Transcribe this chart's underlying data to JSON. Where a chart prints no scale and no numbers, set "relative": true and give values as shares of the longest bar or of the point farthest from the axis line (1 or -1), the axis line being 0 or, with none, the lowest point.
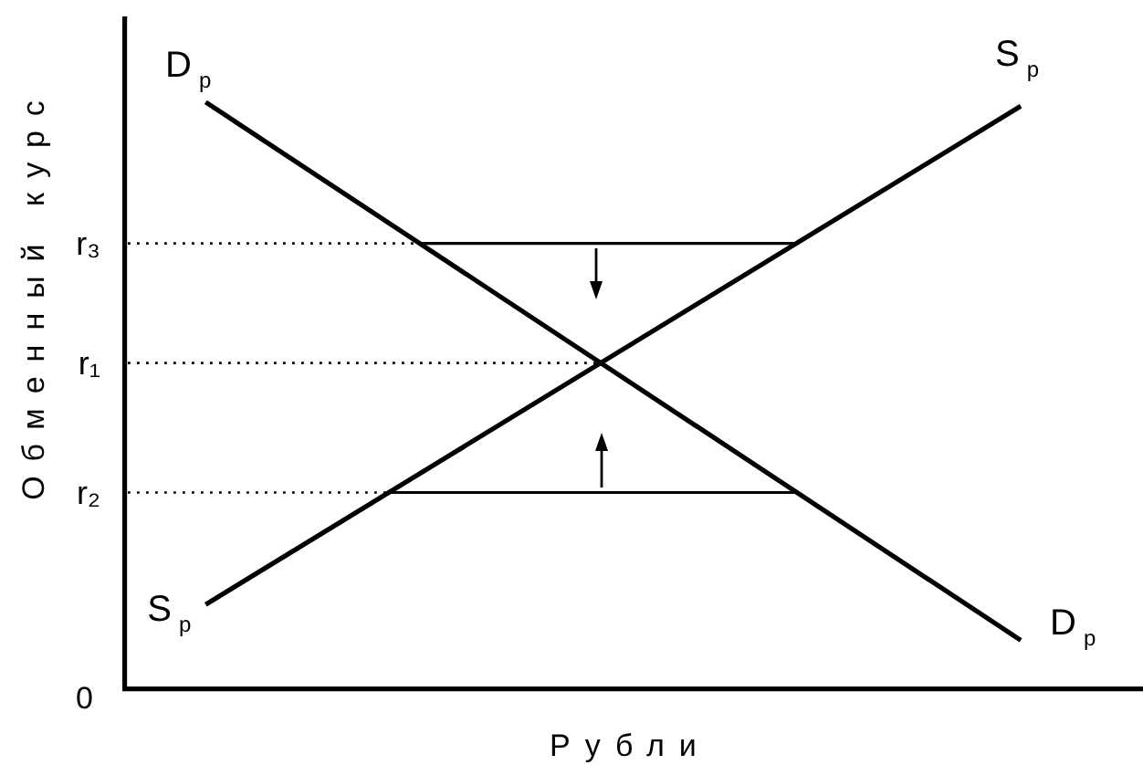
{
  "chart_data": {
    "type": "line",
    "relative": true,
    "xlabel": "Рубли",
    "ylabel": "Обменный курс",
    "categories": [
      null,
      null,
      null,
      null,
      null,
      null,
      null,
      null,
      null,
      null,
      null,
      null,
      null,
      null,
      null,
      null,
      null,
      null,
      null,
      null,
      null,
      null,
      null,
      null,
      null,
      null,
      null,
      null,
      null,
      null,
      null,
      null,
      null,
      null,
      null,
      null,
      null,
      null,
      null,
      null,
      null,
      null,
      null,
      null,
      null,
      null,
      null,
      null,
      null,
      null,
      null,
      null,
      null,
      null,
      null,
      null,
      null,
      null,
      null,
      null,
      null,
      null,
      null,
      null,
      null,
      null,
      null,
      null,
      null,
      null,
      null,
      null,
      null,
      null,
      null,
      null,
      null,
      null,
      null,
      null,
      null,
      null,
      null,
      null,
      null,
      null,
      null,
      null,
      null,
      null,
      null,
      null,
      null,
      null,
      null,
      null,
      null,
      null,
      null,
      null,
      null
    ],
    "series": [
      {
        "name": "D$_{р}$",
        "color": "#000000",
        "values": [
          null,
          null,
          null,
          null,
          null,
          null,
          null,
          null,
          1,
          null,
          null,
          null,
          null,
          null,
          null,
          null,
          null,
          null,
          null,
          null,
          null,
          null,
          null,
          null,
          null,
          null,
          null,
          null,
          null,
          null,
          null,
          null,
          null,
          null,
          null,
          null,
          null,
          null,
          null,
          null,
          null,
          null,
          null,
          null,
          null,
          null,
          null,
          null,
          null,
          null,
          null,
          null,
          null,
          null,
          null,
          null,
          null,
          null,
          null,
          null,
          null,
          null,
          null,
          null,
          null,
          null,
          null,
          null,
          null,
          null,
          null,
          null,
          null,
          null,
          null,
          null,
          null,
          null,
          null,
          null,
          null,
          null,
          null,
          null,
          null,
          null,
          null,
          null,
          0.082,
          null,
          null,
          null,
          null,
          null,
          null,
          null,
          null,
          null,
          null,
          null,
          null
        ]
      },
      {
        "name": "S$_{р}$",
        "color": "#000000",
        "values": [
          null,
          null,
          null,
          null,
          null,
          null,
          null,
          null,
          0.143,
          null,
          null,
          null,
          null,
          null,
          null,
          null,
          null,
          null,
          null,
          null,
          null,
          null,
          null,
          null,
          null,
          null,
          null,
          null,
          null,
          null,
          null,
          null,
          null,
          null,
          null,
          null,
          null,
          null,
          null,
          null,
          null,
          null,
          null,
          null,
          null,
          null,
          null,
          null,
          null,
          null,
          null,
          null,
          null,
          null,
          null,
          null,
          null,
          null,
          null,
          null,
          null,
          null,
          null,
          null,
          null,
          null,
          null,
          null,
          null,
          null,
          null,
          null,
          null,
          null,
          null,
          null,
          null,
          null,
          null,
          null,
          null,
          null,
          null,
          null,
          null,
          null,
          null,
          null,
          0.993,
          null,
          null,
          null,
          null,
          null,
          null,
          null,
          null,
          null,
          null,
          null,
          null
        ]
      },
      {
        "color": "#000000",
        "values": [
          null,
          null,
          null,
          null,
          null,
          null,
          null,
          null,
          null,
          null,
          null,
          null,
          null,
          null,
          null,
          null,
          null,
          null,
          null,
          null,
          null,
          null,
          null,
          null,
          null,
          null,
          null,
          null,
          null,
          0.759,
          null,
          null,
          null,
          null,
          null,
          null,
          null,
          null,
          null,
          null,
          null,
          null,
          null,
          null,
          null,
          null,
          null,
          null,
          null,
          null,
          null,
          null,
          null,
          null,
          null,
          null,
          null,
          null,
          null,
          null,
          null,
          null,
          null,
          null,
          null,
          null,
          0.759,
          null,
          null,
          null,
          null,
          null,
          null,
          null,
          null,
          null,
          null,
          null,
          null,
          null,
          null,
          null,
          null,
          null,
          null,
          null,
          null,
          null,
          null,
          null,
          null,
          null,
          null,
          null,
          null,
          null,
          null,
          null,
          null,
          null,
          null
        ]
      },
      {
        "color": "#000000",
        "values": [
          null,
          null,
          null,
          null,
          null,
          null,
          null,
          null,
          null,
          null,
          null,
          null,
          null,
          null,
          null,
          null,
          null,
          null,
          null,
          null,
          null,
          null,
          null,
          null,
          null,
          null,
          0.334,
          null,
          null,
          null,
          null,
          null,
          null,
          null,
          null,
          null,
          null,
          null,
          null,
          null,
          null,
          null,
          null,
          null,
          null,
          null,
          null,
          null,
          null,
          null,
          null,
          null,
          null,
          null,
          null,
          null,
          null,
          null,
          null,
          null,
          null,
          null,
          null,
          null,
          null,
          null,
          0.334,
          null,
          null,
          null,
          null,
          null,
          null,
          null,
          null,
          null,
          null,
          null,
          null,
          null,
          null,
          null,
          null,
          null,
          null,
          null,
          null,
          null,
          null,
          null,
          null,
          null,
          null,
          null,
          null,
          null,
          null,
          null,
          null,
          null,
          null
        ]
      }
    ],
    "ref_lines": [
      {
        "axis": "y",
        "value": 0.759,
        "label": "r₃",
        "line_style": "dotted",
        "color": "#000000"
      },
      {
        "axis": "y",
        "value": 0.555,
        "label": "r₁",
        "line_style": "dotted",
        "color": "#000000"
      },
      {
        "axis": "y",
        "value": 0.334,
        "label": "r₂",
        "line_style": "dotted",
        "color": "#000000"
      }
    ],
    "annotations": [
      "0"
    ]
  }
}
